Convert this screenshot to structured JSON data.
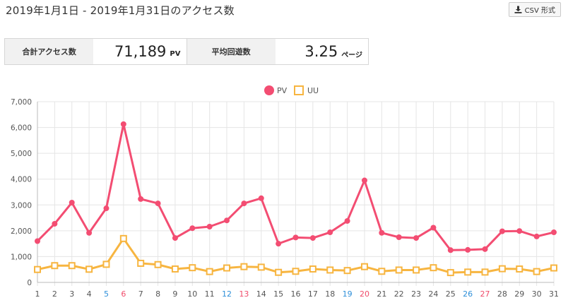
{
  "header": {
    "title": "2019年1月1日 - 2019年1月31日のアクセス数",
    "csv_label": "CSV 形式"
  },
  "stats": {
    "total_label": "合計アクセス数",
    "total_value": "71,189",
    "total_unit": "PV",
    "avg_label": "平均回遊数",
    "avg_value": "3.25",
    "avg_unit": "ページ"
  },
  "colors": {
    "pv": "#f34d72",
    "uu": "#f7b540",
    "saturday": "#2e8fd9",
    "sunday": "#f04b6a",
    "weekday": "#555555",
    "grid": "#e5e5e5"
  },
  "chart_data": {
    "type": "line",
    "categories": [
      "1",
      "2",
      "3",
      "4",
      "5",
      "6",
      "7",
      "8",
      "9",
      "10",
      "11",
      "12",
      "13",
      "14",
      "15",
      "16",
      "17",
      "18",
      "19",
      "20",
      "21",
      "22",
      "23",
      "24",
      "25",
      "26",
      "27",
      "28",
      "29",
      "30",
      "31"
    ],
    "category_colors": [
      "weekday",
      "weekday",
      "weekday",
      "weekday",
      "saturday",
      "sunday",
      "weekday",
      "weekday",
      "weekday",
      "weekday",
      "weekday",
      "saturday",
      "sunday",
      "weekday",
      "weekday",
      "weekday",
      "weekday",
      "weekday",
      "saturday",
      "sunday",
      "weekday",
      "weekday",
      "weekday",
      "weekday",
      "weekday",
      "saturday",
      "sunday",
      "weekday",
      "weekday",
      "weekday",
      "weekday"
    ],
    "series": [
      {
        "name": "PV",
        "marker": "circle",
        "values": [
          1600,
          2270,
          3090,
          1920,
          2870,
          6130,
          3230,
          3060,
          1720,
          2100,
          2160,
          2400,
          3060,
          3260,
          1500,
          1740,
          1720,
          1940,
          2380,
          3950,
          1920,
          1750,
          1720,
          2120,
          1250,
          1260,
          1290,
          1980,
          1990,
          1780,
          1940
        ]
      },
      {
        "name": "UU",
        "marker": "square",
        "values": [
          500,
          650,
          650,
          510,
          700,
          1700,
          740,
          690,
          520,
          570,
          420,
          560,
          610,
          590,
          390,
          430,
          520,
          480,
          460,
          610,
          430,
          480,
          480,
          570,
          380,
          400,
          400,
          530,
          520,
          420,
          560
        ]
      }
    ],
    "ylim": [
      0,
      7000
    ],
    "yticks": [
      "0",
      "1,000",
      "2,000",
      "3,000",
      "4,000",
      "5,000",
      "6,000",
      "7,000"
    ],
    "grid": true,
    "legend_position": "top-center"
  }
}
